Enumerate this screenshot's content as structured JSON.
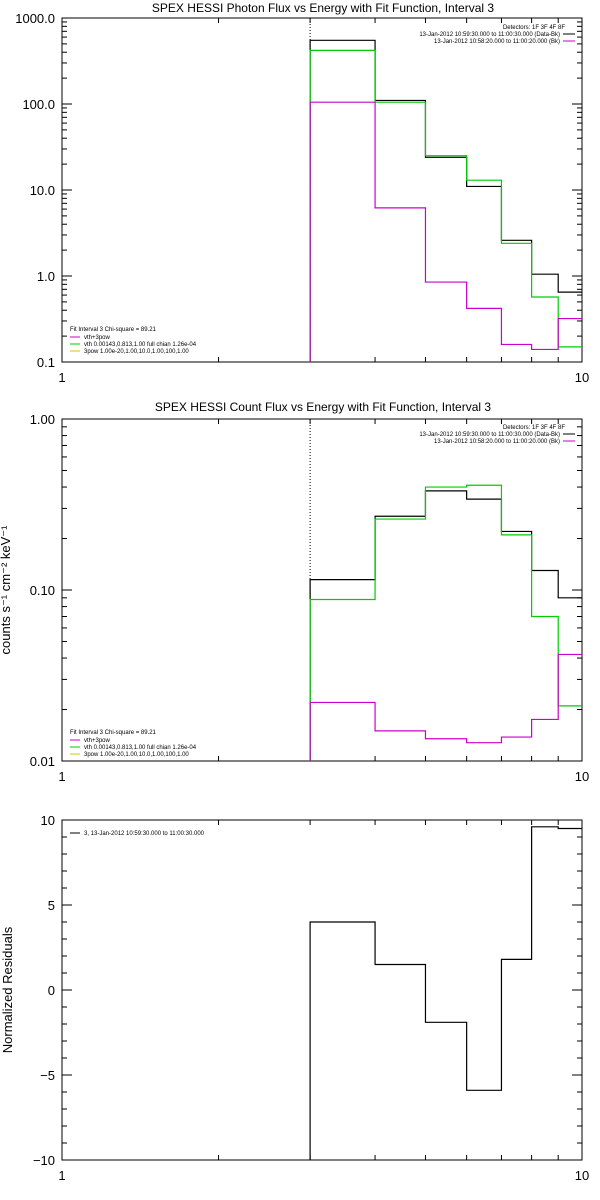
{
  "colors": {
    "data": "#000000",
    "total": "#cc00cc",
    "vth": "#00cc00",
    "bpow": "#cccc00",
    "dotted": "#000000"
  },
  "chart_data": [
    {
      "type": "line",
      "title": "SPEX HESSI Photon Flux vs Energy with Fit Function, Interval 3",
      "xlabel": "",
      "ylabel": "",
      "xscale": "log",
      "yscale": "log",
      "xlim": [
        1,
        10
      ],
      "ylim": [
        0.1,
        1000
      ],
      "xticks": [
        "1",
        "10"
      ],
      "yticks": [
        "0.1",
        "1.0",
        "10.0",
        "100.0",
        "1000.0"
      ],
      "fit_line": 3,
      "legend_topright": [
        "Detectors: 1F 3F 4F 8F",
        "13-Jan-2012 10:59:30.000 to 11:00:30.000 (Data-Bk)",
        "13-Jan-2012 10:58:20.000 to 11:00:20.000 (Bk)"
      ],
      "legend_bottomleft": [
        "Fit Interval 3   Chi-square = 89.21",
        "vth+3pow",
        "vth 0.00143,0.813,1.00   full chian 1.26e-04",
        "3pow 1.00e-20,1.00,10.0,1.00,100,1.00"
      ],
      "edges": [
        3,
        4,
        5,
        6,
        7,
        8,
        9,
        10
      ],
      "series": [
        {
          "name": "13-Jan-2012 10:59:30.000 to 11:00:30.000 (Data-Bk)",
          "color": "black",
          "values": [
            550,
            110,
            24,
            11,
            2.6,
            1.05,
            0.65
          ]
        },
        {
          "color": "green",
          "values": [
            420,
            105,
            25,
            13,
            2.4,
            0.57,
            0.15
          ]
        },
        {
          "name": "13-Jan-2012 10:58:20.000 to 11:00:20.000 (Bk)",
          "color": "magenta",
          "values": [
            105,
            6.2,
            0.85,
            0.42,
            0.16,
            0.14,
            0.32
          ]
        }
      ]
    },
    {
      "type": "line",
      "title": "SPEX HESSI Count Flux vs Energy with Fit Function, Interval 3",
      "xlabel": "",
      "ylabel": "counts s⁻¹ cm⁻² keV⁻¹",
      "xscale": "log",
      "yscale": "log",
      "xlim": [
        1,
        10
      ],
      "ylim": [
        0.01,
        1.0
      ],
      "xticks": [
        "1",
        "10"
      ],
      "yticks": [
        "0.01",
        "0.10",
        "1.00"
      ],
      "fit_line": 3,
      "legend_topright": [
        "Detectors: 1F 3F 4F 8F",
        "13-Jan-2012 10:59:30.000 to 11:00:30.000 (Data-Bk)",
        "13-Jan-2012 10:58:20.000 to 11:00:20.000 (Bk)"
      ],
      "legend_bottomleft": [
        "Fit Interval 3   Chi-square = 89.21",
        "vth+3pow",
        "vth 0.00143,0.813,1.00   full chian 1.26e-04",
        "3pow 1.00e-20,1.00,10.0,1.00,100,1.00"
      ],
      "edges": [
        3,
        4,
        5,
        6,
        7,
        8,
        9,
        10
      ],
      "series": [
        {
          "name": "13-Jan-2012 10:59:30.000 to 11:00:30.000 (Data-Bk)",
          "color": "black",
          "values": [
            0.115,
            0.27,
            0.38,
            0.34,
            0.22,
            0.13,
            0.09
          ]
        },
        {
          "color": "green",
          "values": [
            0.088,
            0.26,
            0.4,
            0.41,
            0.21,
            0.07,
            0.021
          ]
        },
        {
          "name": "13-Jan-2012 10:58:20.000 to 11:00:20.000 (Bk)",
          "color": "magenta",
          "values": [
            0.022,
            0.015,
            0.0135,
            0.0128,
            0.0138,
            0.0175,
            0.042
          ]
        }
      ]
    },
    {
      "type": "line",
      "title": "",
      "xlabel": "",
      "ylabel": "Normalized Residuals",
      "xscale": "log",
      "yscale": "linear",
      "xlim": [
        1,
        10
      ],
      "ylim": [
        -10,
        10
      ],
      "xticks": [
        "1",
        "10"
      ],
      "yticks": [
        "−10",
        "−5",
        "0",
        "5",
        "10"
      ],
      "legend": [
        "3, 13-Jan-2012 10:59:30.000 to 11:00:30.000"
      ],
      "edges": [
        3,
        4,
        5,
        6,
        7,
        8,
        9,
        10
      ],
      "series": [
        {
          "name": "3, 13-Jan-2012 10:59:30.000 to 11:00:30.000",
          "color": "black",
          "values": [
            4.0,
            1.5,
            -1.9,
            -5.9,
            1.8,
            9.6,
            9.5
          ]
        }
      ]
    }
  ]
}
